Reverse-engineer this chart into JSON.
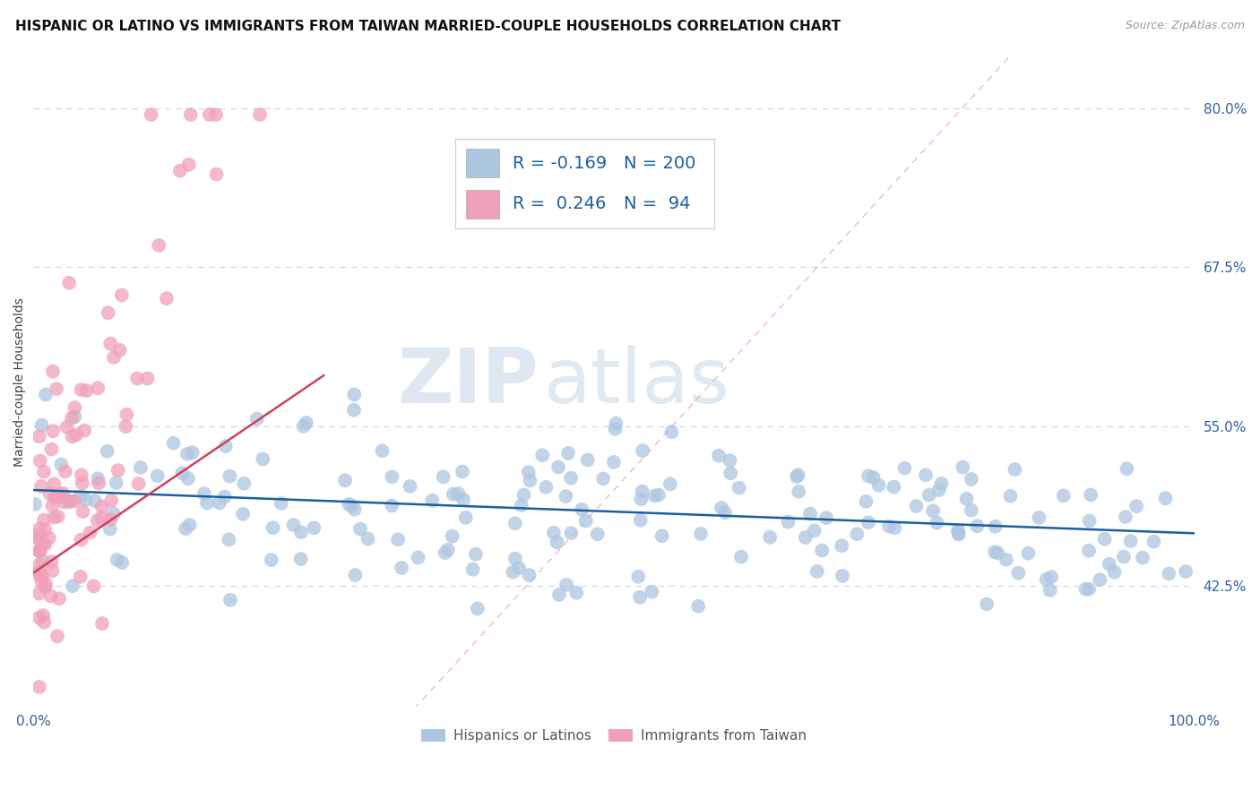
{
  "title": "HISPANIC OR LATINO VS IMMIGRANTS FROM TAIWAN MARRIED-COUPLE HOUSEHOLDS CORRELATION CHART",
  "source": "Source: ZipAtlas.com",
  "ylabel": "Married-couple Households",
  "x_min": 0.0,
  "x_max": 1.0,
  "y_min": 0.33,
  "y_max": 0.84,
  "y_ticks": [
    0.425,
    0.55,
    0.675,
    0.8
  ],
  "y_tick_labels": [
    "42.5%",
    "55.0%",
    "67.5%",
    "80.0%"
  ],
  "x_tick_labels": [
    "0.0%",
    "100.0%"
  ],
  "legend_blue_R": "-0.169",
  "legend_blue_N": "200",
  "legend_pink_R": "0.246",
  "legend_pink_N": "94",
  "blue_color": "#adc6e0",
  "blue_line_color": "#1a5fa0",
  "pink_color": "#f0a0b8",
  "pink_line_color": "#d04060",
  "diag_line_color": "#e08090",
  "grid_color": "#c8d4e4",
  "background_color": "#ffffff",
  "watermark_zip": "ZIP",
  "watermark_atlas": "atlas",
  "title_fontsize": 11,
  "axis_label_fontsize": 10,
  "tick_fontsize": 11,
  "legend_fontsize": 14,
  "source_fontsize": 9,
  "blue_line_start_x": 0.0,
  "blue_line_end_x": 1.0,
  "blue_line_start_y": 0.5,
  "blue_line_end_y": 0.466,
  "pink_line_start_x": 0.0,
  "pink_line_end_x": 0.25,
  "pink_line_start_y": 0.435,
  "pink_line_end_y": 0.59
}
